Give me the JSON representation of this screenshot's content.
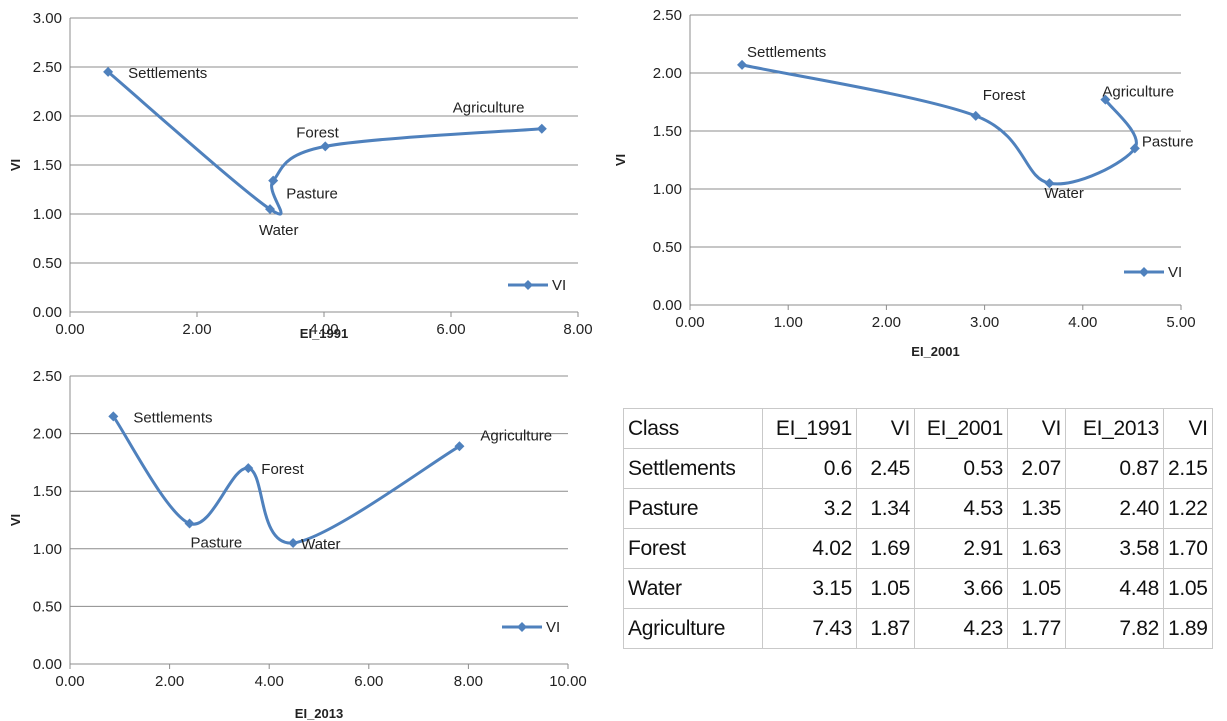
{
  "chart_data": [
    {
      "type": "scatter",
      "xlabel": "EI_1991",
      "ylabel": "VI",
      "xlim": [
        0,
        8
      ],
      "ylim": [
        0,
        3
      ],
      "x_ticks": [
        "0.00",
        "2.00",
        "4.00",
        "6.00",
        "8.00"
      ],
      "y_ticks": [
        "0.00",
        "0.50",
        "1.00",
        "1.50",
        "2.00",
        "2.50",
        "3.00"
      ],
      "grid": "horizontal",
      "legend": "bottom-right",
      "series": [
        {
          "name": "VI",
          "color": "#4F81BD",
          "points": [
            {
              "label": "Settlements",
              "x": 0.6,
              "y": 2.45
            },
            {
              "label": "Water",
              "x": 3.15,
              "y": 1.05
            },
            {
              "label": "Pasture",
              "x": 3.2,
              "y": 1.34
            },
            {
              "label": "Forest",
              "x": 4.02,
              "y": 1.69
            },
            {
              "label": "Agriculture",
              "x": 7.43,
              "y": 1.87
            }
          ]
        }
      ]
    },
    {
      "type": "scatter",
      "xlabel": "EI_2001",
      "ylabel": "VI",
      "xlim": [
        0,
        5
      ],
      "ylim": [
        0,
        2.5
      ],
      "x_ticks": [
        "0.00",
        "1.00",
        "2.00",
        "3.00",
        "4.00",
        "5.00"
      ],
      "y_ticks": [
        "0.00",
        "0.50",
        "1.00",
        "1.50",
        "2.00",
        "2.50"
      ],
      "grid": "horizontal",
      "legend": "bottom-right",
      "series": [
        {
          "name": "VI",
          "color": "#4F81BD",
          "points": [
            {
              "label": "Settlements",
              "x": 0.53,
              "y": 2.07
            },
            {
              "label": "Forest",
              "x": 2.91,
              "y": 1.63
            },
            {
              "label": "Water",
              "x": 3.66,
              "y": 1.05
            },
            {
              "label": "Pasture",
              "x": 4.53,
              "y": 1.35
            },
            {
              "label": "Agriculture",
              "x": 4.23,
              "y": 1.77
            }
          ]
        }
      ]
    },
    {
      "type": "scatter",
      "xlabel": "EI_2013",
      "ylabel": "VI",
      "xlim": [
        0,
        10
      ],
      "ylim": [
        0,
        2.5
      ],
      "x_ticks": [
        "0.00",
        "2.00",
        "4.00",
        "6.00",
        "8.00",
        "10.00"
      ],
      "y_ticks": [
        "0.00",
        "0.50",
        "1.00",
        "1.50",
        "2.00",
        "2.50"
      ],
      "grid": "horizontal",
      "legend": "bottom-right",
      "series": [
        {
          "name": "VI",
          "color": "#4F81BD",
          "points": [
            {
              "label": "Settlements",
              "x": 0.87,
              "y": 2.15
            },
            {
              "label": "Pasture",
              "x": 2.4,
              "y": 1.22
            },
            {
              "label": "Forest",
              "x": 3.58,
              "y": 1.7
            },
            {
              "label": "Water",
              "x": 4.48,
              "y": 1.05
            },
            {
              "label": "Agriculture",
              "x": 7.82,
              "y": 1.89
            }
          ]
        }
      ]
    },
    {
      "type": "table",
      "headers": [
        "Class",
        "EI_1991",
        "VI",
        "EI_2001",
        "VI",
        "EI_2013",
        "VI"
      ],
      "rows": [
        [
          "Settlements",
          "0.6",
          "2.45",
          "0.53",
          "2.07",
          "0.87",
          "2.15"
        ],
        [
          "Pasture",
          "3.2",
          "1.34",
          "4.53",
          "1.35",
          "2.40",
          "1.22"
        ],
        [
          "Forest",
          "4.02",
          "1.69",
          "2.91",
          "1.63",
          "3.58",
          "1.70"
        ],
        [
          "Water",
          "3.15",
          "1.05",
          "3.66",
          "1.05",
          "4.48",
          "1.05"
        ],
        [
          "Agriculture",
          "7.43",
          "1.87",
          "4.23",
          "1.77",
          "7.82",
          "1.89"
        ]
      ]
    }
  ]
}
